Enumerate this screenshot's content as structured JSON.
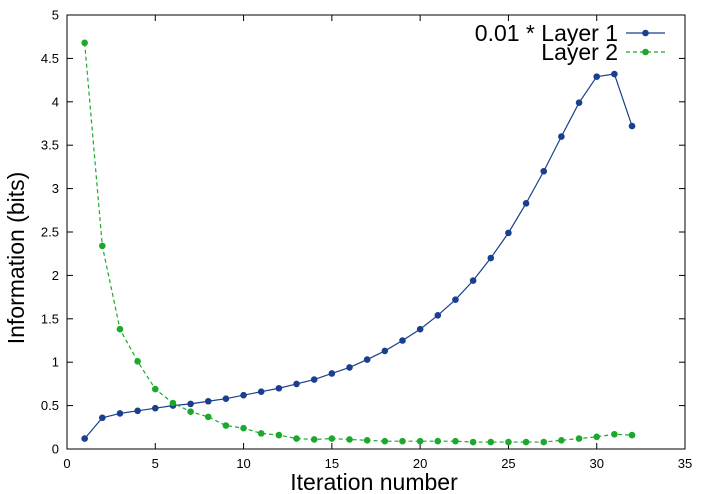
{
  "chart_data": {
    "type": "line",
    "title": "",
    "xlabel": "Iteration number",
    "ylabel": "Information (bits)",
    "xlim": [
      0,
      35
    ],
    "ylim": [
      0,
      5
    ],
    "xticks": [
      "0",
      "5",
      "10",
      "15",
      "20",
      "25",
      "30",
      "35"
    ],
    "yticks": [
      "0",
      "0.5",
      "1",
      "1.5",
      "2",
      "2.5",
      "3",
      "3.5",
      "4",
      "4.5",
      "5"
    ],
    "grid": false,
    "legend_position": "top-right",
    "x": [
      1,
      2,
      3,
      4,
      5,
      6,
      7,
      8,
      9,
      10,
      11,
      12,
      13,
      14,
      15,
      16,
      17,
      18,
      19,
      20,
      21,
      22,
      23,
      24,
      25,
      26,
      27,
      28,
      29,
      30,
      31,
      32
    ],
    "series": [
      {
        "name": "0.01 * Layer 1",
        "color": "#1a3f8f",
        "style": "solid",
        "marker": "circle",
        "values": [
          0.12,
          0.36,
          0.41,
          0.44,
          0.47,
          0.5,
          0.52,
          0.55,
          0.58,
          0.62,
          0.66,
          0.7,
          0.75,
          0.8,
          0.87,
          0.94,
          1.03,
          1.13,
          1.25,
          1.38,
          1.54,
          1.72,
          1.94,
          2.2,
          2.49,
          2.83,
          3.2,
          3.6,
          3.99,
          4.29,
          4.32,
          3.72
        ]
      },
      {
        "name": "Layer 2",
        "color": "#1ca82c",
        "style": "dashed",
        "marker": "circle",
        "values": [
          4.68,
          2.34,
          1.38,
          1.01,
          0.69,
          0.53,
          0.43,
          0.37,
          0.27,
          0.24,
          0.18,
          0.16,
          0.12,
          0.11,
          0.12,
          0.11,
          0.1,
          0.09,
          0.09,
          0.09,
          0.09,
          0.09,
          0.08,
          0.08,
          0.08,
          0.08,
          0.08,
          0.1,
          0.12,
          0.14,
          0.17,
          0.16
        ]
      }
    ]
  }
}
